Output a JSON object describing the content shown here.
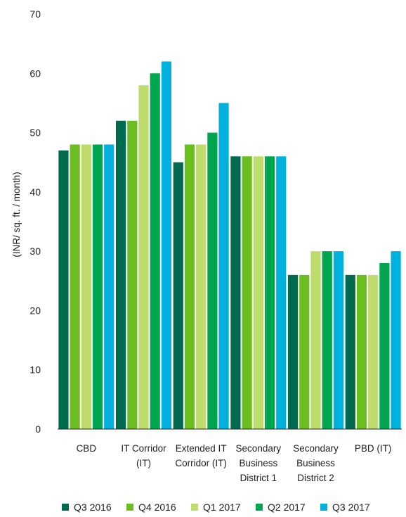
{
  "chart_data": {
    "type": "bar",
    "ylabel": "(INR/ sq. ft. / month)",
    "ylim": [
      0,
      70
    ],
    "yticks": [
      0,
      10,
      20,
      30,
      40,
      50,
      60,
      70
    ],
    "grid": false,
    "legend_position": "bottom",
    "categories": [
      [
        "CBD"
      ],
      [
        "IT Corridor",
        "(IT)"
      ],
      [
        "Extended IT",
        "Corridor (IT)"
      ],
      [
        "Secondary",
        "Business",
        "District 1"
      ],
      [
        "Secondary",
        "Business",
        "District 2"
      ],
      [
        "PBD (IT)"
      ]
    ],
    "series": [
      {
        "name": "Q3 2016",
        "color": "#006a4e",
        "values": [
          47,
          52,
          45,
          46,
          26,
          26
        ]
      },
      {
        "name": "Q4 2016",
        "color": "#6cbd1f",
        "values": [
          48,
          52,
          48,
          46,
          26,
          26
        ]
      },
      {
        "name": "Q1 2017",
        "color": "#bedc6b",
        "values": [
          48,
          58,
          48,
          46,
          30,
          26
        ]
      },
      {
        "name": "Q2 2017",
        "color": "#00a550",
        "values": [
          48,
          60,
          50,
          46,
          30,
          28
        ]
      },
      {
        "name": "Q3 2017",
        "color": "#00b1dd",
        "values": [
          48,
          62,
          55,
          46,
          30,
          30
        ]
      }
    ]
  }
}
